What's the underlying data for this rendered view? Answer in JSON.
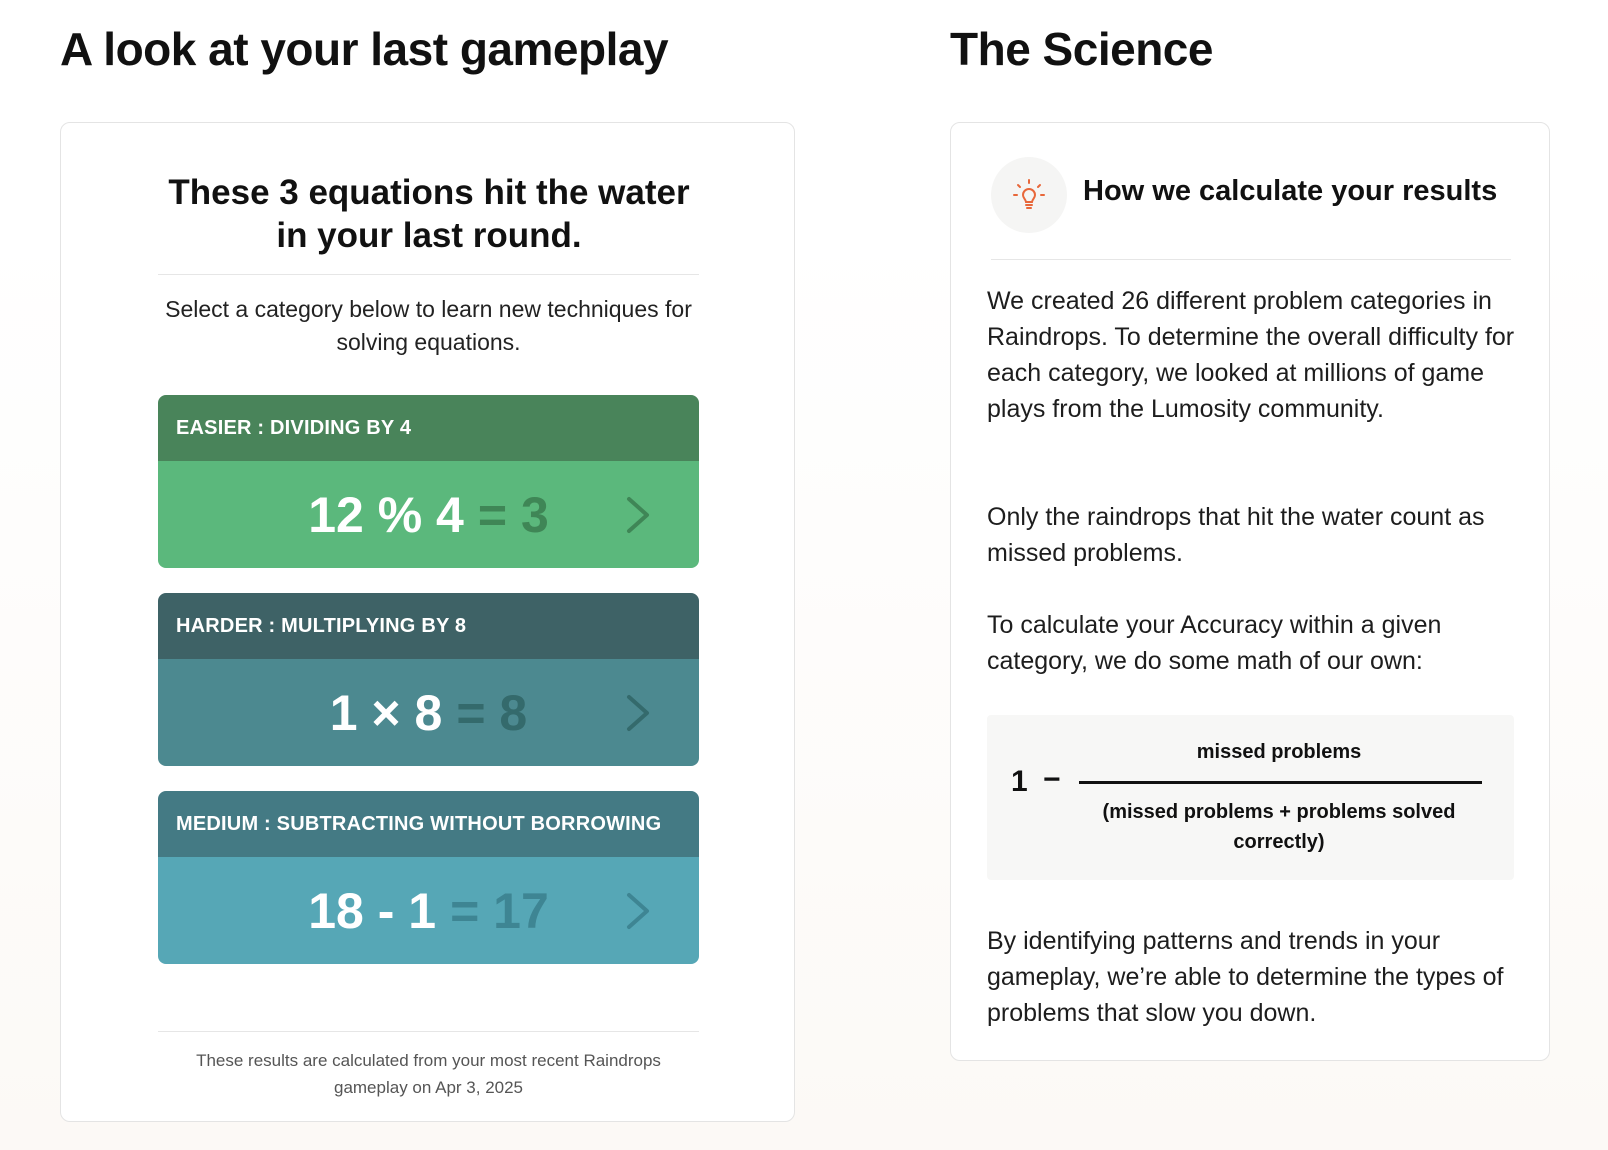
{
  "left": {
    "title": "A look at your last gameplay",
    "heading": "These 3 equations hit the water in your last round.",
    "subtitle": "Select a category below to learn new techniques for solving equations.",
    "categories": [
      {
        "label": "EASIER : DIVIDING BY 4",
        "equation": "12 % 4",
        "answer": "= 3"
      },
      {
        "label": "HARDER : MULTIPLYING BY 8",
        "equation": "1 × 8",
        "answer": "= 8"
      },
      {
        "label": "MEDIUM : SUBTRACTING WITHOUT BORROWING",
        "equation": "18 - 1",
        "answer": "= 17"
      }
    ],
    "footer": "These results are calculated from your most recent Raindrops gameplay on Apr 3, 2025"
  },
  "right": {
    "title": "The Science",
    "heading": "How we calculate your results",
    "icon": "lightbulb-icon",
    "p1": "We created 26 different problem categories in Raindrops. To determine the overall difficulty for each category, we looked at millions of game plays from the Lumosity community.",
    "p2": "Only the raindrops that hit the water count as missed problems.",
    "p3": "To calculate your Accuracy within a given category, we do some math of our own:",
    "formula": {
      "one": "1",
      "minus": "−",
      "numerator": "missed problems",
      "denominator": "(missed problems + problems solved correctly)"
    },
    "p4": "By identifying patterns and trends in your gameplay, we’re able to determine the types of problems that slow you down."
  },
  "colors": {
    "easier_head": "#49845a",
    "easier_body": "#5bb87c",
    "harder_head": "#3e6266",
    "harder_body": "#4c8990",
    "medium_head": "#447a84",
    "medium_body": "#56a7b6",
    "icon_accent": "#e8673a"
  }
}
